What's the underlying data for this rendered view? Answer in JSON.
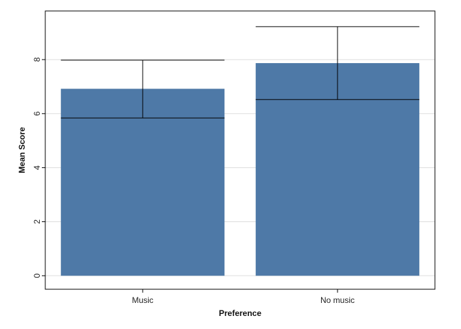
{
  "chart_data": {
    "type": "bar",
    "title": "",
    "xlabel": "Preference",
    "ylabel": "Mean Score",
    "categories": [
      "Music",
      "No music"
    ],
    "values": [
      6.92,
      7.87
    ],
    "error_bars": [
      {
        "lower": 5.84,
        "upper": 7.98
      },
      {
        "lower": 6.52,
        "upper": 9.22
      }
    ],
    "ylim": [
      -0.5,
      9.8
    ],
    "yticks": [
      0,
      2,
      4,
      6,
      8
    ],
    "ytick_labels": [
      "0",
      "2",
      "4",
      "6",
      "8"
    ],
    "grid": true,
    "grid_axis": "y",
    "legend": "none",
    "colors": {
      "bar": "#4e79a7",
      "error_bar": "#000000",
      "grid": "#dddddd",
      "frame": "#000000"
    }
  }
}
